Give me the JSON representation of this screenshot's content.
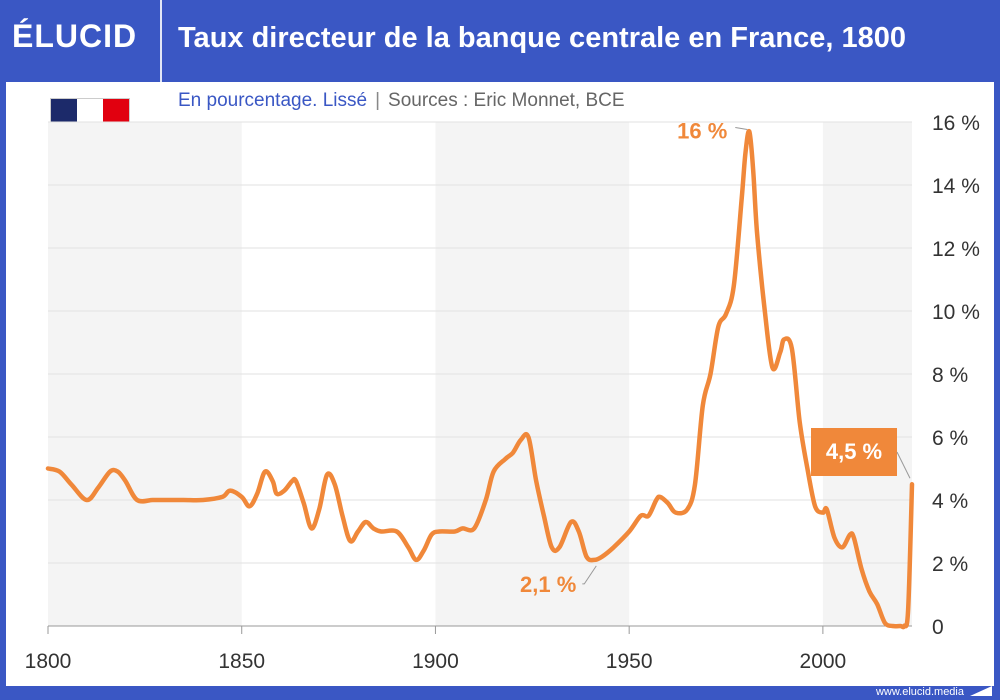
{
  "brand": "ÉLUCID",
  "title": "Taux directeur de la banque centrale en France, 1800",
  "subtitle": "En pourcentage. Lissé",
  "sources": "Sources : Eric Monnet, BCE",
  "footer_url": "www.elucid.media",
  "colors": {
    "accent": "#f0883a",
    "brand": "#3a57c4",
    "band": "#f4f4f4"
  },
  "flag_colors": [
    "#1c2a6a",
    "#ffffff",
    "#e1000f"
  ],
  "chart_data": {
    "type": "line",
    "title": "Taux directeur de la banque centrale en France, 1800",
    "subtitle": "En pourcentage. Lissé",
    "xlabel": "",
    "ylabel": "",
    "xlim": [
      1800,
      2023
    ],
    "ylim": [
      0,
      16
    ],
    "x_ticks": [
      1800,
      1850,
      1900,
      1950,
      2000
    ],
    "y_ticks": [
      0,
      2,
      4,
      6,
      8,
      10,
      12,
      14,
      16
    ],
    "y_tick_labels": [
      "0",
      "2 %",
      "4 %",
      "6 %",
      "8 %",
      "10 %",
      "12 %",
      "14 %",
      "16 %"
    ],
    "y_axis_position": "right",
    "grid": true,
    "shaded_bands": [
      [
        1800,
        1850
      ],
      [
        1900,
        1950
      ],
      [
        2000,
        2023
      ]
    ],
    "series": [
      {
        "color": "#f0883a",
        "points": [
          [
            1800,
            5.0
          ],
          [
            1803,
            4.9
          ],
          [
            1806,
            4.5
          ],
          [
            1810,
            4.0
          ],
          [
            1813,
            4.4
          ],
          [
            1816,
            4.9
          ],
          [
            1818,
            4.9
          ],
          [
            1820,
            4.6
          ],
          [
            1823,
            4.0
          ],
          [
            1827,
            4.0
          ],
          [
            1830,
            4.0
          ],
          [
            1835,
            4.0
          ],
          [
            1840,
            4.0
          ],
          [
            1845,
            4.1
          ],
          [
            1847,
            4.3
          ],
          [
            1850,
            4.1
          ],
          [
            1852,
            3.8
          ],
          [
            1854,
            4.2
          ],
          [
            1856,
            4.9
          ],
          [
            1858,
            4.6
          ],
          [
            1859,
            4.2
          ],
          [
            1861,
            4.3
          ],
          [
            1863,
            4.6
          ],
          [
            1864,
            4.6
          ],
          [
            1866,
            3.9
          ],
          [
            1868,
            3.1
          ],
          [
            1870,
            3.7
          ],
          [
            1872,
            4.8
          ],
          [
            1874,
            4.5
          ],
          [
            1876,
            3.5
          ],
          [
            1878,
            2.7
          ],
          [
            1880,
            3.0
          ],
          [
            1882,
            3.3
          ],
          [
            1884,
            3.1
          ],
          [
            1886,
            3.0
          ],
          [
            1890,
            3.0
          ],
          [
            1893,
            2.5
          ],
          [
            1895,
            2.1
          ],
          [
            1897,
            2.4
          ],
          [
            1899,
            2.9
          ],
          [
            1901,
            3.0
          ],
          [
            1905,
            3.0
          ],
          [
            1907,
            3.1
          ],
          [
            1910,
            3.1
          ],
          [
            1913,
            4.0
          ],
          [
            1915,
            4.9
          ],
          [
            1918,
            5.3
          ],
          [
            1920,
            5.5
          ],
          [
            1922,
            5.9
          ],
          [
            1924,
            6.0
          ],
          [
            1926,
            4.6
          ],
          [
            1928,
            3.5
          ],
          [
            1930,
            2.5
          ],
          [
            1932,
            2.5
          ],
          [
            1935,
            3.3
          ],
          [
            1937,
            3.0
          ],
          [
            1939,
            2.2
          ],
          [
            1941,
            2.1
          ],
          [
            1943,
            2.2
          ],
          [
            1946,
            2.5
          ],
          [
            1950,
            3.0
          ],
          [
            1953,
            3.5
          ],
          [
            1955,
            3.5
          ],
          [
            1957,
            4.0
          ],
          [
            1958,
            4.1
          ],
          [
            1960,
            3.9
          ],
          [
            1962,
            3.6
          ],
          [
            1965,
            3.7
          ],
          [
            1967,
            4.5
          ],
          [
            1969,
            7.0
          ],
          [
            1971,
            8.0
          ],
          [
            1973,
            9.5
          ],
          [
            1975,
            9.9
          ],
          [
            1977,
            10.8
          ],
          [
            1979,
            13.5
          ],
          [
            1980,
            15.0
          ],
          [
            1981,
            15.7
          ],
          [
            1982,
            14.5
          ],
          [
            1983,
            12.5
          ],
          [
            1985,
            10.0
          ],
          [
            1987,
            8.2
          ],
          [
            1989,
            8.7
          ],
          [
            1990,
            9.1
          ],
          [
            1992,
            8.8
          ],
          [
            1994,
            6.5
          ],
          [
            1996,
            5.0
          ],
          [
            1998,
            3.8
          ],
          [
            2000,
            3.6
          ],
          [
            2001,
            3.7
          ],
          [
            2003,
            2.8
          ],
          [
            2005,
            2.5
          ],
          [
            2007,
            2.9
          ],
          [
            2008,
            2.8
          ],
          [
            2010,
            1.8
          ],
          [
            2012,
            1.1
          ],
          [
            2014,
            0.7
          ],
          [
            2016,
            0.1
          ],
          [
            2018,
            0.0
          ],
          [
            2020,
            0.0
          ],
          [
            2021,
            0.0
          ],
          [
            2022,
            0.5
          ],
          [
            2023,
            4.5
          ]
        ]
      }
    ],
    "annotations": [
      {
        "label": "16 %",
        "x": 1981,
        "y": 15.7
      },
      {
        "label": "2,1 %",
        "x": 1941,
        "y": 2.1
      },
      {
        "label": "4,5 %",
        "x": 2023,
        "y": 4.5
      }
    ]
  }
}
